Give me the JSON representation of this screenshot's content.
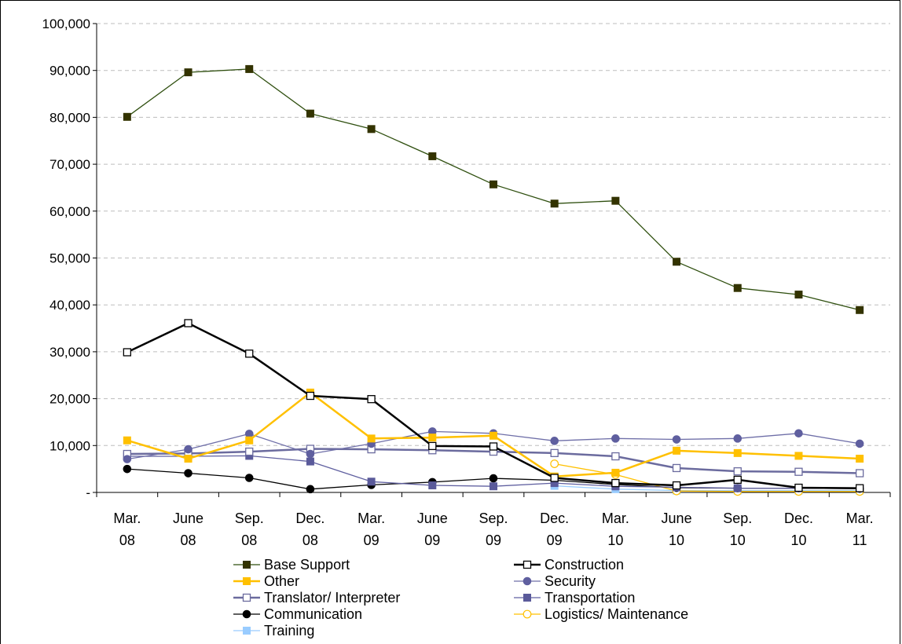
{
  "chart_data": {
    "type": "line",
    "title": "",
    "xlabel": "",
    "ylabel": "",
    "categories": [
      [
        "Mar.",
        "08"
      ],
      [
        "June",
        "08"
      ],
      [
        "Sep.",
        "08"
      ],
      [
        "Dec.",
        "08"
      ],
      [
        "Mar.",
        "09"
      ],
      [
        "June",
        "09"
      ],
      [
        "Sep.",
        "09"
      ],
      [
        "Dec.",
        "09"
      ],
      [
        "Mar.",
        "10"
      ],
      [
        "June",
        "10"
      ],
      [
        "Sep.",
        "10"
      ],
      [
        "Dec.",
        "10"
      ],
      [
        "Mar.",
        "11"
      ]
    ],
    "ylim": [
      0,
      100000
    ],
    "yticks": [
      {
        "value": 0,
        "label": "-"
      },
      {
        "value": 10000,
        "label": "10,000"
      },
      {
        "value": 20000,
        "label": "20,000"
      },
      {
        "value": 30000,
        "label": "30,000"
      },
      {
        "value": 40000,
        "label": "40,000"
      },
      {
        "value": 50000,
        "label": "50,000"
      },
      {
        "value": 60000,
        "label": "60,000"
      },
      {
        "value": 70000,
        "label": "70,000"
      },
      {
        "value": 80000,
        "label": "80,000"
      },
      {
        "value": 90000,
        "label": "90,000"
      },
      {
        "value": 100000,
        "label": "100,000"
      }
    ],
    "grid": "horizontal dashed",
    "legend_position": "bottom",
    "series": [
      {
        "name": "Base Support",
        "color": "#2f4f0f",
        "marker": "square-filled",
        "marker_color": "#333300",
        "width": 1.3,
        "values": [
          80100,
          89600,
          90300,
          80800,
          77500,
          71700,
          65700,
          61600,
          62200,
          49200,
          43600,
          42200,
          38900
        ]
      },
      {
        "name": "Construction",
        "color": "#000000",
        "marker": "square-open",
        "marker_color": "#000000",
        "width": 2.5,
        "values": [
          29900,
          36100,
          29600,
          20600,
          19900,
          9900,
          9800,
          3100,
          2000,
          1500,
          2700,
          1000,
          900
        ]
      },
      {
        "name": "Other",
        "color": "#ffc000",
        "marker": "square-filled",
        "marker_color": "#ffc000",
        "width": 2.5,
        "values": [
          11100,
          7200,
          11100,
          21300,
          11500,
          11700,
          12100,
          3400,
          4200,
          8900,
          8400,
          7800,
          7200
        ]
      },
      {
        "name": "Security",
        "color": "#6f6fa8",
        "marker": "circle-filled",
        "marker_color": "#5f5f9f",
        "width": 1.3,
        "values": [
          7100,
          9200,
          12500,
          8200,
          10400,
          13000,
          12600,
          11000,
          11500,
          11300,
          11500,
          12600,
          10400
        ]
      },
      {
        "name": "Translator/ Interpreter",
        "color": "#6b6b9e",
        "marker": "square-open",
        "marker_color": "#6b6b9e",
        "width": 2.5,
        "values": [
          8200,
          8300,
          8700,
          9300,
          9200,
          9000,
          8700,
          8400,
          7700,
          5200,
          4500,
          4400,
          4100
        ]
      },
      {
        "name": "Transportation",
        "color": "#6060a0",
        "marker": "square-filled",
        "marker_color": "#5a5a9a",
        "width": 1.3,
        "values": [
          7700,
          7700,
          7800,
          6600,
          2300,
          1500,
          1300,
          2000,
          1300,
          1100,
          900,
          900,
          900
        ]
      },
      {
        "name": "Communication",
        "color": "#000000",
        "marker": "circle-filled",
        "marker_color": "#000000",
        "width": 1.3,
        "values": [
          5000,
          4100,
          3100,
          700,
          1600,
          2200,
          3000,
          2600,
          1700,
          1000,
          900,
          900,
          800
        ]
      },
      {
        "name": "Logistics/ Maintenance",
        "color": "#ffc000",
        "marker": "circle-open",
        "marker_color": "#ffc000",
        "width": 1.3,
        "values": [
          null,
          null,
          null,
          null,
          null,
          null,
          null,
          6100,
          3800,
          300,
          200,
          200,
          200
        ]
      },
      {
        "name": "Training",
        "color": "#99ccff",
        "marker": "square-filled",
        "marker_color": "#99ccff",
        "width": 1.3,
        "values": [
          null,
          null,
          null,
          null,
          null,
          null,
          null,
          1400,
          700,
          400,
          400,
          400,
          400
        ]
      }
    ]
  }
}
